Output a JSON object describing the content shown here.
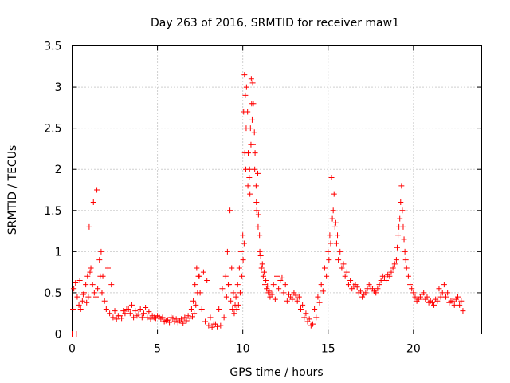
{
  "chart_data": {
    "type": "scatter",
    "title": "Day 263 of 2016, SRMTID for receiver maw1",
    "xlabel": "GPS time / hours",
    "ylabel": "SRMTID / TECUs",
    "xlim": [
      0,
      24
    ],
    "ylim": [
      0,
      3.5
    ],
    "x_ticks": [
      0,
      5,
      10,
      15,
      20
    ],
    "x_tick_labels": [
      "0",
      "5",
      "10",
      "15",
      "20"
    ],
    "y_ticks": [
      0,
      0.5,
      1,
      1.5,
      2,
      2.5,
      3,
      3.5
    ],
    "y_tick_labels": [
      "0",
      "0.5",
      "1",
      "1.5",
      "2",
      "2.5",
      "3",
      "3.5"
    ],
    "grid": true,
    "marker": "+",
    "series_color": "#ff0000",
    "series": [
      {
        "name": "maw1",
        "x": [
          0.0,
          0.1,
          0.2,
          0.3,
          0.4,
          0.5,
          0.6,
          0.7,
          0.8,
          0.9,
          1.0,
          1.1,
          1.2,
          1.3,
          1.4,
          1.5,
          1.6,
          1.7,
          1.8,
          1.9,
          2.0,
          2.2,
          2.4,
          2.6,
          2.8,
          3.0,
          3.2,
          3.4,
          3.6,
          3.8,
          4.0,
          4.2,
          4.4,
          4.6,
          4.8,
          5.0,
          5.2,
          5.4,
          5.6,
          5.8,
          6.0,
          6.2,
          6.4,
          6.6,
          6.8,
          7.0,
          7.1,
          7.2,
          7.3,
          7.4,
          7.5,
          7.6,
          7.8,
          8.0,
          8.2,
          8.4,
          8.6,
          8.8,
          9.0,
          9.1,
          9.2,
          9.3,
          9.4,
          9.5,
          9.6,
          9.7,
          9.8,
          9.9,
          10.0,
          10.05,
          10.1,
          10.15,
          10.2,
          10.3,
          10.4,
          10.45,
          10.5,
          10.55,
          10.6,
          10.7,
          10.8,
          10.9,
          11.0,
          11.1,
          11.2,
          11.3,
          11.4,
          11.5,
          11.6,
          11.8,
          12.0,
          12.2,
          12.4,
          12.6,
          12.8,
          13.0,
          13.2,
          13.4,
          13.6,
          13.8,
          14.0,
          14.2,
          14.4,
          14.6,
          14.8,
          15.0,
          15.1,
          15.2,
          15.3,
          15.4,
          15.5,
          15.6,
          15.8,
          16.0,
          16.2,
          16.4,
          16.6,
          16.8,
          17.0,
          17.2,
          17.4,
          17.6,
          17.8,
          18.0,
          18.2,
          18.4,
          18.6,
          18.8,
          19.0,
          19.1,
          19.2,
          19.3,
          19.4,
          19.5,
          19.6,
          19.8,
          20.0,
          20.2,
          20.4,
          20.6,
          20.8,
          21.0,
          21.2,
          21.4,
          21.6,
          21.8,
          22.0,
          22.2,
          22.4,
          22.6,
          22.8,
          0.05,
          0.25,
          0.45,
          0.65,
          0.85,
          0.95,
          1.05,
          1.25,
          1.45,
          1.65,
          1.75,
          2.1,
          2.3,
          2.5,
          2.7,
          2.9,
          3.1,
          3.3,
          3.5,
          3.7,
          3.9,
          4.1,
          4.3,
          4.5,
          4.7,
          4.9,
          5.1,
          5.3,
          5.5,
          5.7,
          5.9,
          6.1,
          6.3,
          6.5,
          6.7,
          6.9,
          7.05,
          7.15,
          7.25,
          7.35,
          7.45,
          7.7,
          7.9,
          8.1,
          8.3,
          8.5,
          8.7,
          8.9,
          9.05,
          9.15,
          9.25,
          9.35,
          9.45,
          9.55,
          9.65,
          9.75,
          9.85,
          9.95,
          10.02,
          10.08,
          10.12,
          10.18,
          10.22,
          10.28,
          10.32,
          10.38,
          10.42,
          10.48,
          10.52,
          10.58,
          10.62,
          10.68,
          10.72,
          10.78,
          10.82,
          10.88,
          10.92,
          10.98,
          11.05,
          11.15,
          11.25,
          11.35,
          11.45,
          11.55,
          11.7,
          11.9,
          12.1,
          12.3,
          12.5,
          12.7,
          12.9,
          13.1,
          13.3,
          13.5,
          13.7,
          13.9,
          14.1,
          14.3,
          14.5,
          14.7,
          14.9,
          15.05,
          15.15,
          15.25,
          15.35,
          15.45,
          15.55,
          15.7,
          15.9,
          16.1,
          16.3,
          16.5,
          16.7,
          16.9,
          17.1,
          17.3,
          17.5,
          17.7,
          17.9,
          18.1,
          18.3,
          18.5,
          18.7,
          18.9,
          19.05,
          19.15,
          19.25,
          19.35,
          19.45,
          19.55,
          19.7,
          19.9,
          20.1,
          20.3,
          20.5,
          20.7,
          20.9,
          21.1,
          21.3,
          21.5,
          21.7,
          21.9,
          22.1,
          22.3,
          22.5,
          22.7,
          22.9
        ],
        "y": [
          0.0,
          0.55,
          0.62,
          0.45,
          0.35,
          0.3,
          0.4,
          0.5,
          0.6,
          0.7,
          1.3,
          0.8,
          0.6,
          0.5,
          0.45,
          0.55,
          0.9,
          1.0,
          0.7,
          0.4,
          0.3,
          0.25,
          0.2,
          0.18,
          0.22,
          0.28,
          0.3,
          0.25,
          0.2,
          0.22,
          0.3,
          0.25,
          0.2,
          0.18,
          0.2,
          0.22,
          0.18,
          0.15,
          0.17,
          0.2,
          0.15,
          0.14,
          0.18,
          0.2,
          0.22,
          0.3,
          0.4,
          0.6,
          0.8,
          0.7,
          0.5,
          0.3,
          0.15,
          0.1,
          0.08,
          0.12,
          0.3,
          0.55,
          0.7,
          1.0,
          0.6,
          0.4,
          0.3,
          0.25,
          0.45,
          0.6,
          0.8,
          1.0,
          1.2,
          2.7,
          3.15,
          2.9,
          2.5,
          1.8,
          2.0,
          2.5,
          3.1,
          2.6,
          2.3,
          2.0,
          1.6,
          1.3,
          1.0,
          0.8,
          0.7,
          0.6,
          0.55,
          0.5,
          0.45,
          0.6,
          0.7,
          0.65,
          0.5,
          0.4,
          0.45,
          0.5,
          0.4,
          0.3,
          0.2,
          0.15,
          0.1,
          0.3,
          0.45,
          0.6,
          0.8,
          1.0,
          1.2,
          1.9,
          1.5,
          1.3,
          1.1,
          0.9,
          0.8,
          0.7,
          0.6,
          0.55,
          0.6,
          0.5,
          0.45,
          0.5,
          0.6,
          0.55,
          0.5,
          0.6,
          0.7,
          0.65,
          0.7,
          0.8,
          0.9,
          1.2,
          1.4,
          1.8,
          1.3,
          1.0,
          0.8,
          0.6,
          0.5,
          0.4,
          0.45,
          0.5,
          0.45,
          0.4,
          0.35,
          0.4,
          0.45,
          0.6,
          0.5,
          0.4,
          0.35,
          0.45,
          0.4,
          0.3,
          0.0,
          0.65,
          0.48,
          0.38,
          0.45,
          0.75,
          1.6,
          1.75,
          0.7,
          0.5,
          0.8,
          0.6,
          0.28,
          0.22,
          0.19,
          0.25,
          0.3,
          0.35,
          0.28,
          0.24,
          0.2,
          0.32,
          0.27,
          0.22,
          0.19,
          0.21,
          0.2,
          0.16,
          0.14,
          0.19,
          0.18,
          0.16,
          0.13,
          0.16,
          0.19,
          0.21,
          0.25,
          0.35,
          0.5,
          0.7,
          0.75,
          0.65,
          0.2,
          0.12,
          0.09,
          0.1,
          0.2,
          0.45,
          0.6,
          1.5,
          0.8,
          0.5,
          0.35,
          0.3,
          0.35,
          0.5,
          0.7,
          0.9,
          1.1,
          2.2,
          2.0,
          3.0,
          2.7,
          2.2,
          1.9,
          1.7,
          2.3,
          2.8,
          3.05,
          2.8,
          2.45,
          2.2,
          1.8,
          1.5,
          1.95,
          1.45,
          1.2,
          0.95,
          0.85,
          0.75,
          0.65,
          0.58,
          0.52,
          0.48,
          0.42,
          0.55,
          0.68,
          0.6,
          0.48,
          0.42,
          0.47,
          0.45,
          0.35,
          0.25,
          0.18,
          0.12,
          0.2,
          0.38,
          0.52,
          0.7,
          0.9,
          1.1,
          1.4,
          1.7,
          1.35,
          1.2,
          1.0,
          0.85,
          0.75,
          0.65,
          0.58,
          0.57,
          0.52,
          0.48,
          0.55,
          0.58,
          0.52,
          0.55,
          0.65,
          0.68,
          0.72,
          0.75,
          0.85,
          1.05,
          1.3,
          1.6,
          1.5,
          1.15,
          0.9,
          0.7,
          0.55,
          0.45,
          0.42,
          0.48,
          0.42,
          0.38,
          0.38,
          0.42,
          0.55,
          0.5,
          0.45,
          0.38,
          0.4,
          0.42,
          0.35,
          0.28
        ]
      }
    ]
  }
}
